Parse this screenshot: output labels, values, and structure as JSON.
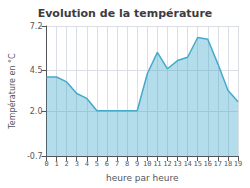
{
  "chart_data": {
    "type": "line",
    "title": "Evolution de la température",
    "xlabel": "heure par heure",
    "ylabel": "Température en °C",
    "x": [
      0,
      1,
      2,
      3,
      4,
      5,
      6,
      7,
      8,
      9,
      10,
      11,
      12,
      13,
      14,
      15,
      16,
      17,
      18,
      19
    ],
    "values": [
      4.1,
      4.1,
      3.8,
      3.1,
      2.8,
      2.05,
      2.05,
      2.05,
      2.05,
      2.05,
      4.3,
      5.6,
      4.6,
      5.1,
      5.3,
      6.5,
      6.4,
      4.9,
      3.3,
      2.6
    ],
    "color": "#44aacc",
    "xlim": [
      0,
      19
    ],
    "xticks": [
      0,
      1,
      2,
      3,
      4,
      5,
      6,
      7,
      8,
      9,
      10,
      11,
      12,
      13,
      14,
      15,
      16,
      17,
      18,
      19
    ],
    "ylim": [
      -0.7,
      7.2
    ],
    "yticks": [
      -0.7,
      {
        "value": 2.0,
        "label": "2.0"
      },
      4.5,
      7.2
    ],
    "grid": true
  }
}
